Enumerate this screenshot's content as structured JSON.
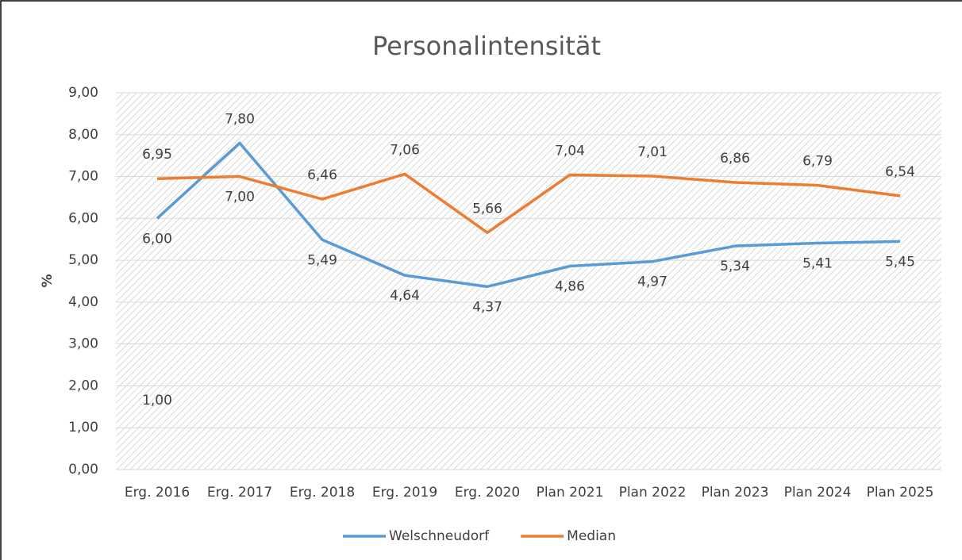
{
  "chart_data": {
    "type": "line",
    "title": "Personalintensität",
    "y_label": "%",
    "categories": [
      "Erg. 2016",
      "Erg. 2017",
      "Erg. 2018",
      "Erg. 2019",
      "Erg. 2020",
      "Plan 2021",
      "Plan 2022",
      "Plan 2023",
      "Plan 2024",
      "Plan 2025"
    ],
    "series": [
      {
        "name": "Welschneudorf",
        "color": "#5b9bd5",
        "values": [
          6.0,
          7.8,
          5.49,
          4.64,
          4.37,
          4.86,
          4.97,
          5.34,
          5.41,
          5.45
        ],
        "value_labels": [
          "6,00",
          "7,80",
          "5,49",
          "4,64",
          "4,37",
          "4,86",
          "4,97",
          "5,34",
          "5,41",
          "5,45"
        ]
      },
      {
        "name": "Median",
        "color": "#ed7d31",
        "values": [
          6.95,
          7.0,
          6.46,
          7.06,
          5.66,
          7.04,
          7.01,
          6.86,
          6.79,
          6.54
        ],
        "value_labels": [
          "6,95",
          "7,00",
          "6,46",
          "7,06",
          "5,66",
          "7,04",
          "7,01",
          "6,86",
          "6,79",
          "6,54"
        ]
      }
    ],
    "annotations": [
      {
        "category": "Erg. 2016",
        "value": 1,
        "label": "1,00"
      }
    ],
    "ylim": [
      0,
      9
    ],
    "yticks": [
      {
        "value": 0,
        "label": "0,00"
      },
      {
        "value": 1,
        "label": "1,00"
      },
      {
        "value": 2,
        "label": "2,00"
      },
      {
        "value": 3,
        "label": "3,00"
      },
      {
        "value": 4,
        "label": "4,00"
      },
      {
        "value": 5,
        "label": "5,00"
      },
      {
        "value": 6,
        "label": "6,00"
      },
      {
        "value": 7,
        "label": "7,00"
      },
      {
        "value": 8,
        "label": "8,00"
      },
      {
        "value": 9,
        "label": "9,00"
      }
    ],
    "grid": true,
    "legend": "bottom"
  }
}
